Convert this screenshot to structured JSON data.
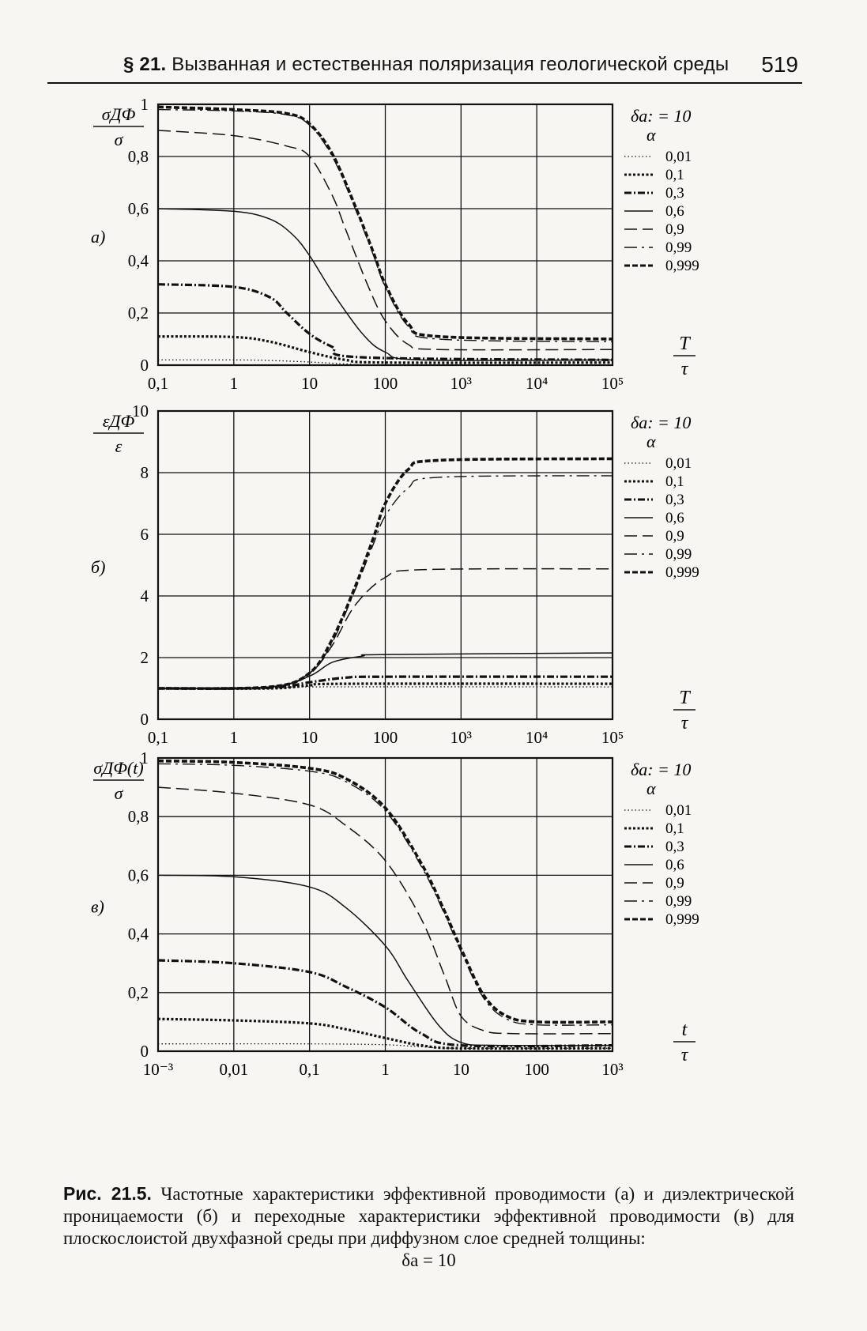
{
  "header": {
    "section": "§ 21.",
    "title": "Вызванная и естественная поляризация геологической среды",
    "page_number": "519"
  },
  "figure": {
    "caption_label": "Рис. 21.5.",
    "caption_text": "Частотные характеристики эффективной проводимости (а) и диэлектрической проницаемости (б) и переходные характеристики эффективной проводимости (в) для плоскослоистой двухфазной среды при диффузном слое средней толщины:",
    "caption_tail": "δa = 10"
  },
  "legend": {
    "title": "δa: = 10",
    "param": "α",
    "entries": [
      "0,01",
      "0,1",
      "0,3",
      "0,6",
      "0,9",
      "0,99",
      "0,999"
    ]
  },
  "chart_data": [
    {
      "type": "line",
      "panel_label": "а)",
      "ylabel": "σДФ/σ",
      "xlabel": "T/τ",
      "xscale": "log",
      "xlim": [
        0.1,
        100000
      ],
      "ylim": [
        0,
        1
      ],
      "grid": true,
      "legend_position": "right",
      "x_ticks": [
        "0,1",
        "1",
        "10",
        "100",
        "10³",
        "10⁴",
        "10⁵"
      ],
      "y_ticks": [
        "0",
        "0,2",
        "0,4",
        "0,6",
        "0,8",
        "1"
      ],
      "series": [
        {
          "name": "0,01",
          "points": [
            [
              0.1,
              0.02
            ],
            [
              1,
              0.02
            ],
            [
              3,
              0.018
            ],
            [
              10,
              0.012
            ],
            [
              30,
              0.005
            ],
            [
              100,
              0.001
            ],
            [
              100000,
              0.001
            ]
          ]
        },
        {
          "name": "0,1",
          "points": [
            [
              0.1,
              0.11
            ],
            [
              1,
              0.108
            ],
            [
              3,
              0.09
            ],
            [
              10,
              0.05
            ],
            [
              30,
              0.02
            ],
            [
              100,
              0.01
            ],
            [
              100000,
              0.01
            ]
          ]
        },
        {
          "name": "0,3",
          "points": [
            [
              0.1,
              0.31
            ],
            [
              1,
              0.3
            ],
            [
              3,
              0.26
            ],
            [
              5,
              0.2
            ],
            [
              10,
              0.12
            ],
            [
              20,
              0.07
            ],
            [
              50,
              0.03
            ],
            [
              100000,
              0.02
            ]
          ]
        },
        {
          "name": "0,6",
          "points": [
            [
              0.1,
              0.6
            ],
            [
              1,
              0.59
            ],
            [
              3,
              0.56
            ],
            [
              6,
              0.5
            ],
            [
              10,
              0.42
            ],
            [
              20,
              0.28
            ],
            [
              50,
              0.12
            ],
            [
              100,
              0.05
            ],
            [
              300,
              0.02
            ],
            [
              100000,
              0.02
            ]
          ]
        },
        {
          "name": "0,9",
          "points": [
            [
              0.1,
              0.9
            ],
            [
              1,
              0.88
            ],
            [
              5,
              0.84
            ],
            [
              10,
              0.8
            ],
            [
              20,
              0.65
            ],
            [
              30,
              0.52
            ],
            [
              60,
              0.3
            ],
            [
              100,
              0.17
            ],
            [
              200,
              0.08
            ],
            [
              500,
              0.06
            ],
            [
              100000,
              0.06
            ]
          ]
        },
        {
          "name": "0,99",
          "points": [
            [
              0.1,
              0.98
            ],
            [
              1,
              0.975
            ],
            [
              5,
              0.96
            ],
            [
              10,
              0.92
            ],
            [
              20,
              0.8
            ],
            [
              40,
              0.6
            ],
            [
              70,
              0.42
            ],
            [
              100,
              0.3
            ],
            [
              200,
              0.15
            ],
            [
              500,
              0.1
            ],
            [
              100000,
              0.09
            ]
          ]
        },
        {
          "name": "0,999",
          "points": [
            [
              0.1,
              0.99
            ],
            [
              1,
              0.98
            ],
            [
              5,
              0.965
            ],
            [
              10,
              0.925
            ],
            [
              20,
              0.81
            ],
            [
              40,
              0.61
            ],
            [
              70,
              0.43
            ],
            [
              100,
              0.31
            ],
            [
              200,
              0.16
            ],
            [
              500,
              0.11
            ],
            [
              100000,
              0.1
            ]
          ]
        }
      ]
    },
    {
      "type": "line",
      "panel_label": "б)",
      "ylabel": "εДФ/ε",
      "xlabel": "T/τ",
      "xscale": "log",
      "xlim": [
        0.1,
        100000
      ],
      "ylim": [
        0,
        10
      ],
      "grid": true,
      "legend_position": "right",
      "x_ticks": [
        "0,1",
        "1",
        "10",
        "100",
        "10³",
        "10⁴",
        "10⁵"
      ],
      "y_ticks": [
        "0",
        "2",
        "4",
        "6",
        "8",
        "10"
      ],
      "series": [
        {
          "name": "0,01",
          "points": [
            [
              0.1,
              1.0
            ],
            [
              3,
              1.0
            ],
            [
              10,
              1.05
            ],
            [
              100000,
              1.05
            ]
          ]
        },
        {
          "name": "0,1",
          "points": [
            [
              0.1,
              1.0
            ],
            [
              3,
              1.0
            ],
            [
              10,
              1.1
            ],
            [
              30,
              1.15
            ],
            [
              100000,
              1.15
            ]
          ]
        },
        {
          "name": "0,3",
          "points": [
            [
              0.1,
              1.0
            ],
            [
              3,
              1.02
            ],
            [
              10,
              1.2
            ],
            [
              30,
              1.35
            ],
            [
              100,
              1.38
            ],
            [
              100000,
              1.38
            ]
          ]
        },
        {
          "name": "0,6",
          "points": [
            [
              0.1,
              1.0
            ],
            [
              3,
              1.05
            ],
            [
              10,
              1.4
            ],
            [
              20,
              1.85
            ],
            [
              50,
              2.05
            ],
            [
              100,
              2.1
            ],
            [
              100000,
              2.15
            ]
          ]
        },
        {
          "name": "0,9",
          "points": [
            [
              0.1,
              1.0
            ],
            [
              3,
              1.05
            ],
            [
              10,
              1.5
            ],
            [
              20,
              2.4
            ],
            [
              40,
              3.7
            ],
            [
              100,
              4.6
            ],
            [
              300,
              4.85
            ],
            [
              100000,
              4.88
            ]
          ]
        },
        {
          "name": "0,99",
          "points": [
            [
              0.1,
              1.0
            ],
            [
              3,
              1.05
            ],
            [
              10,
              1.5
            ],
            [
              20,
              2.5
            ],
            [
              40,
              4.2
            ],
            [
              70,
              5.7
            ],
            [
              100,
              6.6
            ],
            [
              200,
              7.5
            ],
            [
              500,
              7.85
            ],
            [
              100000,
              7.9
            ]
          ]
        },
        {
          "name": "0,999",
          "points": [
            [
              0.1,
              1.0
            ],
            [
              3,
              1.05
            ],
            [
              10,
              1.5
            ],
            [
              20,
              2.6
            ],
            [
              40,
              4.3
            ],
            [
              70,
              5.9
            ],
            [
              100,
              7.0
            ],
            [
              200,
              8.1
            ],
            [
              500,
              8.4
            ],
            [
              100000,
              8.45
            ]
          ]
        }
      ]
    },
    {
      "type": "line",
      "panel_label": "в)",
      "ylabel": "σДФ(t)/σ",
      "xlabel": "t/τ",
      "xscale": "log",
      "xlim": [
        0.001,
        1000
      ],
      "ylim": [
        0,
        1
      ],
      "grid": true,
      "legend_position": "right",
      "x_ticks": [
        "10⁻³",
        "0,01",
        "0,1",
        "1",
        "10",
        "100",
        "10³"
      ],
      "y_ticks": [
        "0",
        "0,2",
        "0,4",
        "0,6",
        "0,8",
        "1"
      ],
      "series": [
        {
          "name": "0,01",
          "points": [
            [
              0.001,
              0.025
            ],
            [
              0.1,
              0.025
            ],
            [
              1,
              0.022
            ],
            [
              3,
              0.015
            ],
            [
              10,
              0.01
            ],
            [
              1000,
              0.01
            ]
          ]
        },
        {
          "name": "0,1",
          "points": [
            [
              0.001,
              0.11
            ],
            [
              0.01,
              0.105
            ],
            [
              0.1,
              0.095
            ],
            [
              0.3,
              0.075
            ],
            [
              1,
              0.045
            ],
            [
              3,
              0.02
            ],
            [
              10,
              0.01
            ],
            [
              1000,
              0.01
            ]
          ]
        },
        {
          "name": "0,3",
          "points": [
            [
              0.001,
              0.31
            ],
            [
              0.01,
              0.3
            ],
            [
              0.1,
              0.27
            ],
            [
              0.3,
              0.22
            ],
            [
              1,
              0.15
            ],
            [
              3,
              0.06
            ],
            [
              10,
              0.02
            ],
            [
              1000,
              0.02
            ]
          ]
        },
        {
          "name": "0,6",
          "points": [
            [
              0.001,
              0.6
            ],
            [
              0.01,
              0.595
            ],
            [
              0.1,
              0.56
            ],
            [
              0.3,
              0.49
            ],
            [
              1,
              0.36
            ],
            [
              2,
              0.24
            ],
            [
              5,
              0.09
            ],
            [
              10,
              0.03
            ],
            [
              30,
              0.02
            ],
            [
              1000,
              0.02
            ]
          ]
        },
        {
          "name": "0,9",
          "points": [
            [
              0.001,
              0.9
            ],
            [
              0.01,
              0.88
            ],
            [
              0.1,
              0.84
            ],
            [
              0.3,
              0.77
            ],
            [
              1,
              0.65
            ],
            [
              3,
              0.45
            ],
            [
              6,
              0.26
            ],
            [
              10,
              0.12
            ],
            [
              20,
              0.07
            ],
            [
              50,
              0.06
            ],
            [
              1000,
              0.06
            ]
          ]
        },
        {
          "name": "0,99",
          "points": [
            [
              0.001,
              0.98
            ],
            [
              0.01,
              0.975
            ],
            [
              0.1,
              0.955
            ],
            [
              0.3,
              0.92
            ],
            [
              1,
              0.82
            ],
            [
              3,
              0.63
            ],
            [
              6,
              0.47
            ],
            [
              10,
              0.34
            ],
            [
              20,
              0.18
            ],
            [
              40,
              0.11
            ],
            [
              100,
              0.09
            ],
            [
              1000,
              0.09
            ]
          ]
        },
        {
          "name": "0,999",
          "points": [
            [
              0.001,
              0.99
            ],
            [
              0.01,
              0.985
            ],
            [
              0.1,
              0.965
            ],
            [
              0.3,
              0.93
            ],
            [
              1,
              0.83
            ],
            [
              3,
              0.64
            ],
            [
              6,
              0.48
            ],
            [
              10,
              0.35
            ],
            [
              20,
              0.19
            ],
            [
              40,
              0.12
            ],
            [
              100,
              0.1
            ],
            [
              1000,
              0.1
            ]
          ]
        }
      ]
    }
  ]
}
